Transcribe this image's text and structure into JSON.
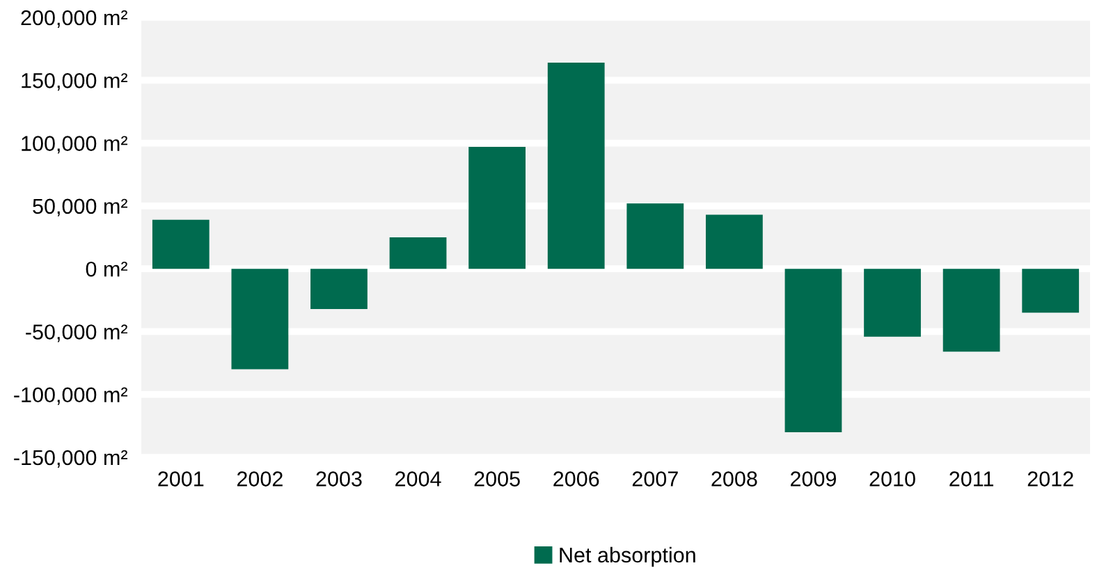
{
  "chart_data": {
    "type": "bar",
    "categories": [
      "2001",
      "2002",
      "2003",
      "2004",
      "2005",
      "2006",
      "2007",
      "2008",
      "2009",
      "2010",
      "2011",
      "2012"
    ],
    "series": [
      {
        "name": "Net absorption",
        "color": "#006b4f",
        "values": [
          39000,
          -80000,
          -32000,
          25000,
          97000,
          164000,
          52000,
          43000,
          -130000,
          -54000,
          -66000,
          -35000
        ]
      }
    ],
    "ylim": [
      -150000,
      200000
    ],
    "yticks": [
      {
        "value": -150000,
        "label": "-150,000 m²"
      },
      {
        "value": -100000,
        "label": "-100,000 m²"
      },
      {
        "value": -50000,
        "label": "-50,000 m²"
      },
      {
        "value": 0,
        "label": "0 m²"
      },
      {
        "value": 50000,
        "label": "50,000 m²"
      },
      {
        "value": 100000,
        "label": "100,000 m²"
      },
      {
        "value": 150000,
        "label": "150,000 m²"
      },
      {
        "value": 200000,
        "label": "200,000 m²"
      }
    ],
    "grid": "y",
    "legend": "bottom"
  }
}
